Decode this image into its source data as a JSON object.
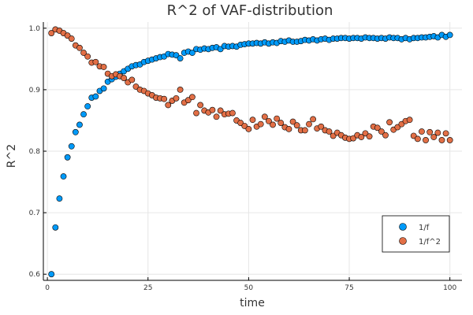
{
  "chart_data": {
    "type": "scatter",
    "title": "R^2 of VAF-distribution",
    "xlabel": "time",
    "ylabel": "R^2",
    "xlim": [
      -1,
      103
    ],
    "ylim": [
      0.59,
      1.01
    ],
    "xticks": [
      0,
      25,
      50,
      75,
      100
    ],
    "yticks": [
      0.6,
      0.7,
      0.8,
      0.9,
      1.0
    ],
    "ytick_labels": [
      "0.6",
      "0.7",
      "0.8",
      "0.9",
      "1.0"
    ],
    "grid": true,
    "legend_position": "bottom-right",
    "series": [
      {
        "name": "1/f",
        "color": "#009af9",
        "x": [
          1,
          2,
          3,
          4,
          5,
          6,
          7,
          8,
          9,
          10,
          11,
          12,
          13,
          14,
          15,
          16,
          17,
          18,
          19,
          20,
          21,
          22,
          23,
          24,
          25,
          26,
          27,
          28,
          29,
          30,
          31,
          32,
          33,
          34,
          35,
          36,
          37,
          38,
          39,
          40,
          41,
          42,
          43,
          44,
          45,
          46,
          47,
          48,
          49,
          50,
          51,
          52,
          53,
          54,
          55,
          56,
          57,
          58,
          59,
          60,
          61,
          62,
          63,
          64,
          65,
          66,
          67,
          68,
          69,
          70,
          71,
          72,
          73,
          74,
          75,
          76,
          77,
          78,
          79,
          80,
          81,
          82,
          83,
          84,
          85,
          86,
          87,
          88,
          89,
          90,
          91,
          92,
          93,
          94,
          95,
          96,
          97,
          98,
          99,
          100
        ],
        "y": [
          0.6,
          0.676,
          0.723,
          0.759,
          0.79,
          0.808,
          0.831,
          0.843,
          0.86,
          0.873,
          0.887,
          0.889,
          0.898,
          0.902,
          0.913,
          0.917,
          0.921,
          0.926,
          0.93,
          0.934,
          0.938,
          0.94,
          0.941,
          0.945,
          0.947,
          0.949,
          0.951,
          0.953,
          0.954,
          0.958,
          0.957,
          0.956,
          0.951,
          0.96,
          0.962,
          0.96,
          0.966,
          0.965,
          0.967,
          0.966,
          0.968,
          0.969,
          0.966,
          0.971,
          0.97,
          0.971,
          0.97,
          0.973,
          0.974,
          0.975,
          0.975,
          0.976,
          0.975,
          0.977,
          0.975,
          0.977,
          0.976,
          0.979,
          0.978,
          0.98,
          0.978,
          0.978,
          0.979,
          0.981,
          0.98,
          0.982,
          0.98,
          0.982,
          0.983,
          0.981,
          0.983,
          0.983,
          0.984,
          0.984,
          0.983,
          0.984,
          0.984,
          0.983,
          0.985,
          0.984,
          0.984,
          0.983,
          0.984,
          0.983,
          0.985,
          0.984,
          0.984,
          0.982,
          0.984,
          0.982,
          0.984,
          0.984,
          0.985,
          0.985,
          0.986,
          0.987,
          0.985,
          0.989,
          0.986,
          0.989
        ]
      },
      {
        "name": "1/f^2",
        "color": "#e26f46",
        "x": [
          1,
          2,
          3,
          4,
          5,
          6,
          7,
          8,
          9,
          10,
          11,
          12,
          13,
          14,
          15,
          16,
          17,
          18,
          19,
          20,
          21,
          22,
          23,
          24,
          25,
          26,
          27,
          28,
          29,
          30,
          31,
          32,
          33,
          34,
          35,
          36,
          37,
          38,
          39,
          40,
          41,
          42,
          43,
          44,
          45,
          46,
          47,
          48,
          49,
          50,
          51,
          52,
          53,
          54,
          55,
          56,
          57,
          58,
          59,
          60,
          61,
          62,
          63,
          64,
          65,
          66,
          67,
          68,
          69,
          70,
          71,
          72,
          73,
          74,
          75,
          76,
          77,
          78,
          79,
          80,
          81,
          82,
          83,
          84,
          85,
          86,
          87,
          88,
          89,
          90,
          91,
          92,
          93,
          94,
          95,
          96,
          97,
          98,
          99,
          100
        ],
        "y": [
          0.992,
          0.998,
          0.996,
          0.992,
          0.988,
          0.983,
          0.972,
          0.968,
          0.96,
          0.954,
          0.944,
          0.945,
          0.938,
          0.937,
          0.926,
          0.922,
          0.925,
          0.922,
          0.919,
          0.912,
          0.916,
          0.905,
          0.9,
          0.898,
          0.894,
          0.891,
          0.887,
          0.886,
          0.885,
          0.875,
          0.882,
          0.886,
          0.9,
          0.879,
          0.883,
          0.888,
          0.862,
          0.875,
          0.866,
          0.863,
          0.867,
          0.856,
          0.866,
          0.86,
          0.861,
          0.862,
          0.85,
          0.846,
          0.841,
          0.836,
          0.851,
          0.84,
          0.844,
          0.856,
          0.849,
          0.843,
          0.853,
          0.846,
          0.839,
          0.836,
          0.848,
          0.842,
          0.834,
          0.834,
          0.844,
          0.852,
          0.837,
          0.84,
          0.834,
          0.832,
          0.825,
          0.83,
          0.826,
          0.822,
          0.82,
          0.821,
          0.826,
          0.823,
          0.829,
          0.824,
          0.84,
          0.838,
          0.832,
          0.826,
          0.847,
          0.835,
          0.839,
          0.844,
          0.849,
          0.851,
          0.825,
          0.82,
          0.832,
          0.818,
          0.831,
          0.823,
          0.83,
          0.818,
          0.829,
          0.818
        ]
      }
    ]
  }
}
